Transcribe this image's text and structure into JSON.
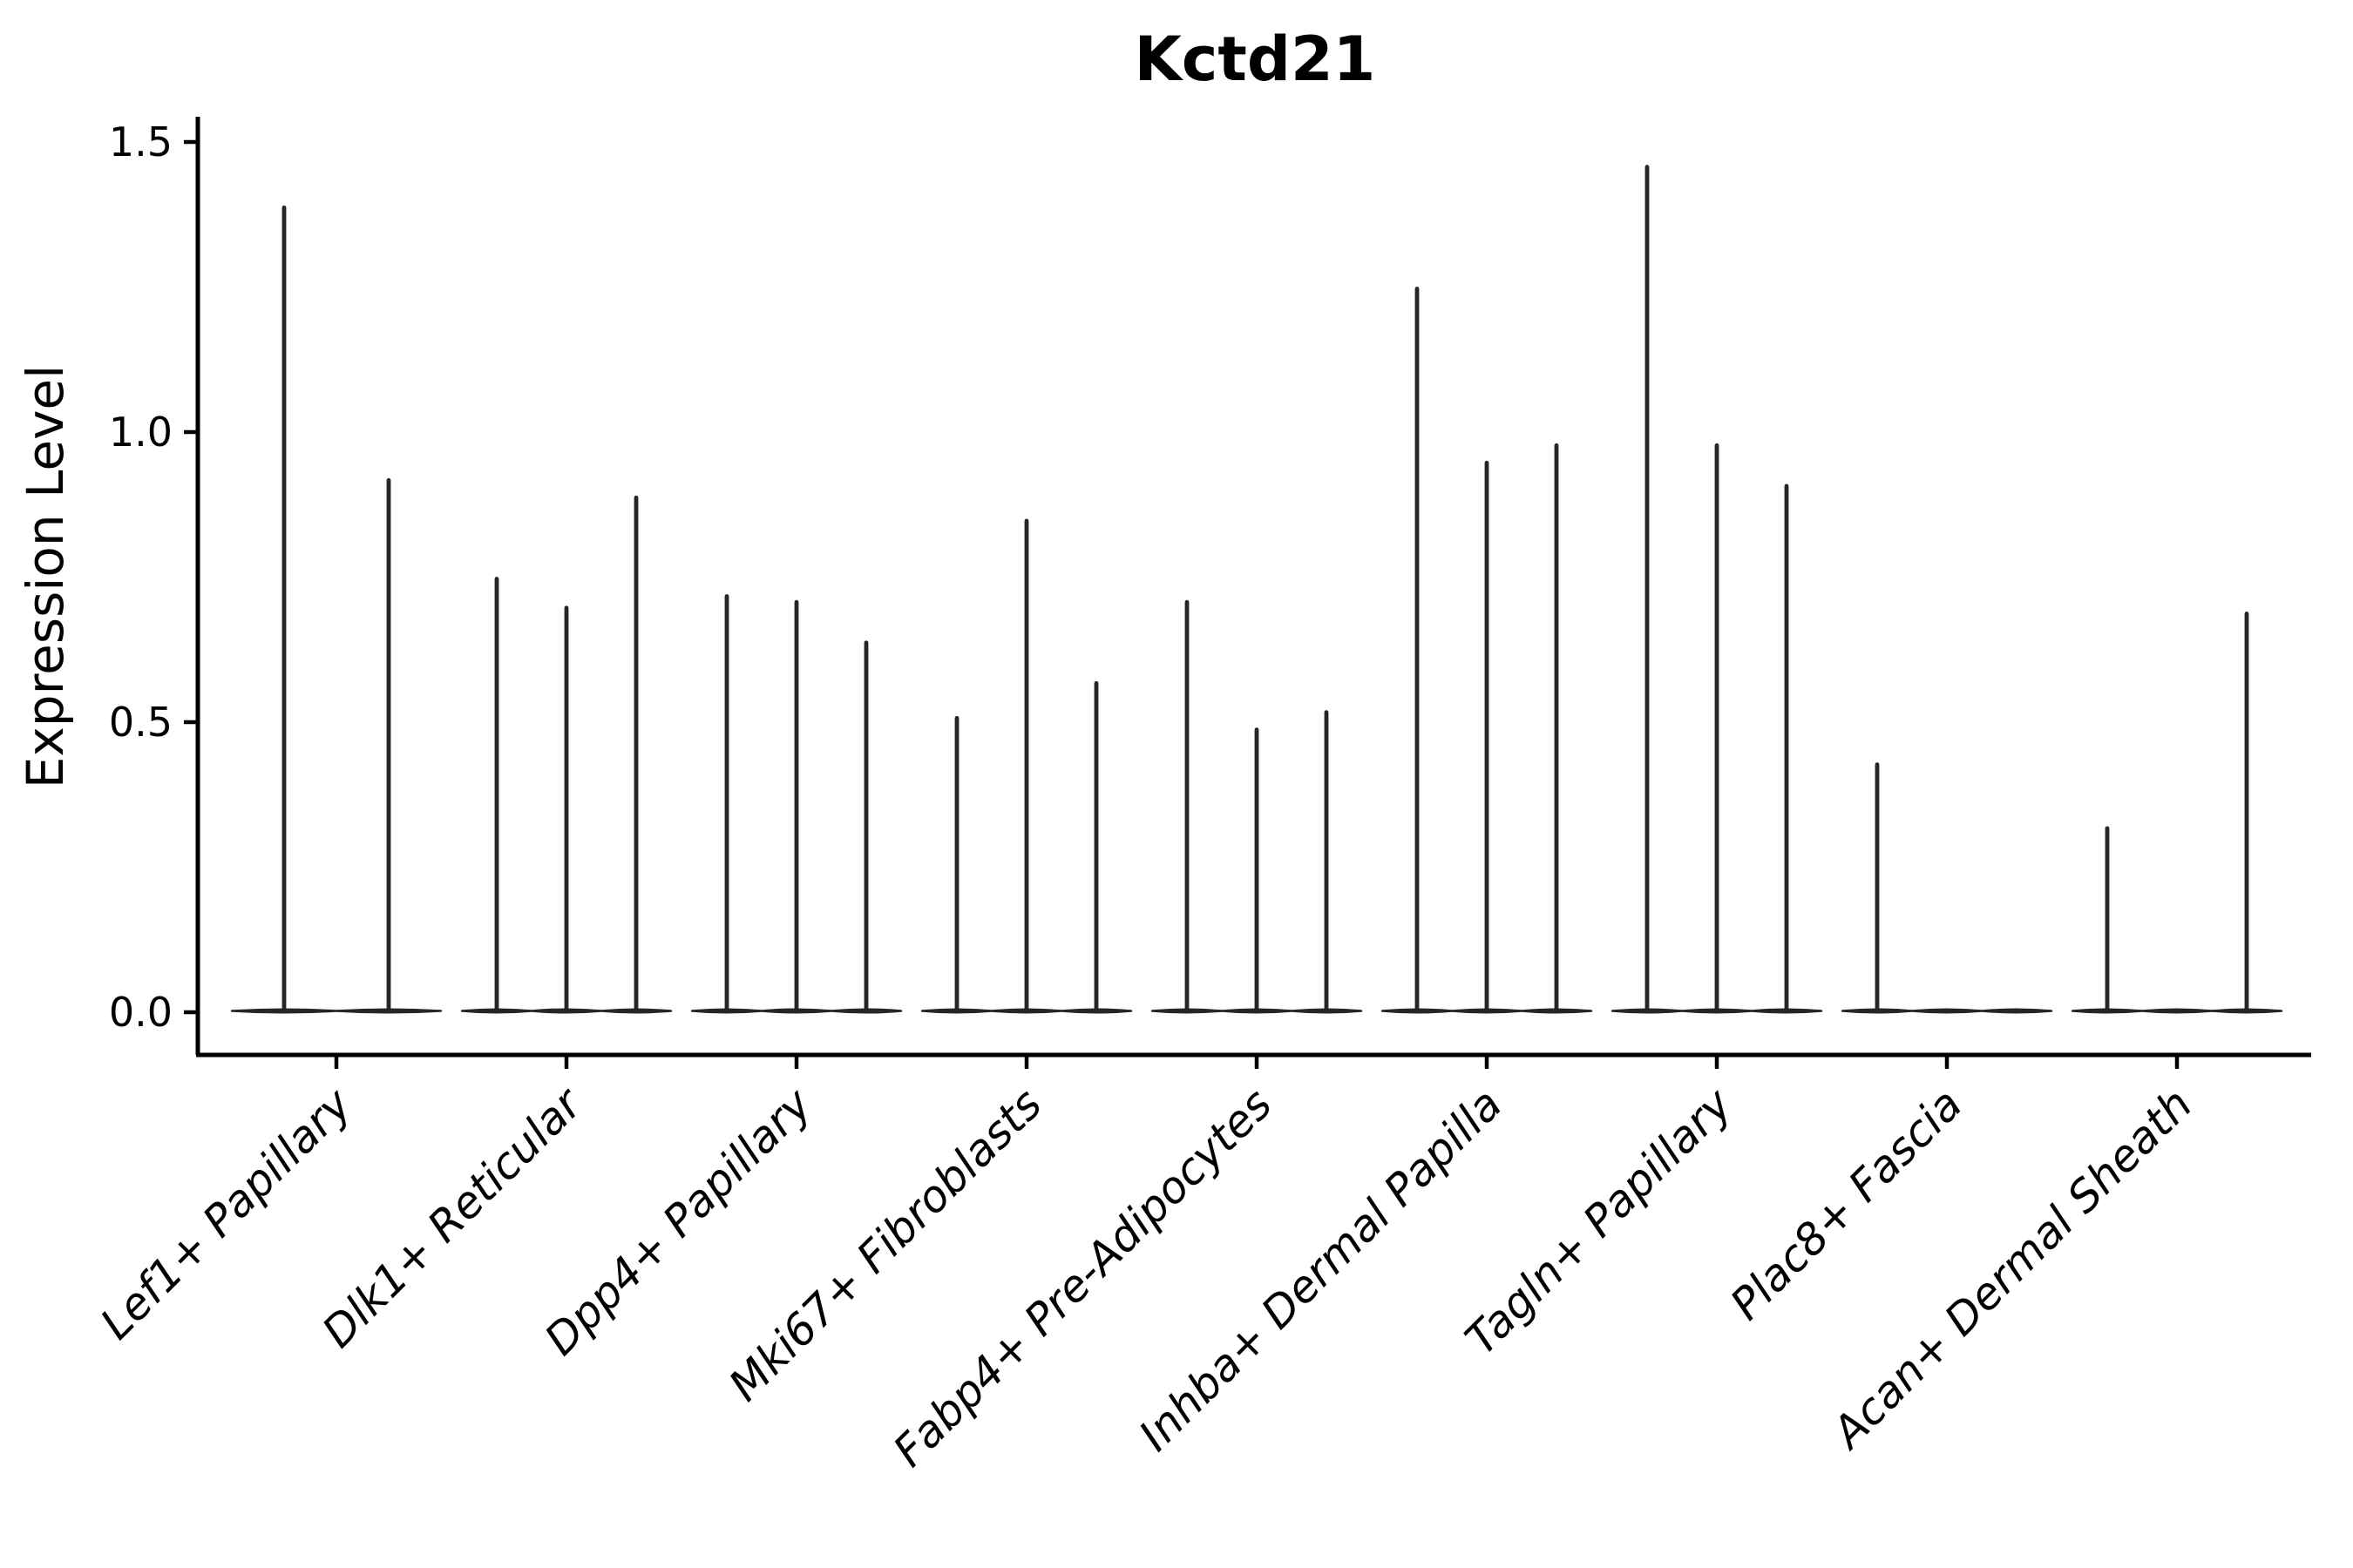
{
  "figure": {
    "title": "Kctd21"
  },
  "axes": {
    "ylabel": "Expression Level",
    "ytick_labels": [
      "0.0",
      "0.5",
      "1.0",
      "1.5"
    ]
  },
  "chart_data": {
    "type": "violin",
    "title": "Kctd21",
    "xlabel": "",
    "ylabel": "Expression Level",
    "ylim": [
      0,
      1.5
    ],
    "yticks": [
      0.0,
      0.5,
      1.0,
      1.5
    ],
    "grid": false,
    "legend": "none",
    "style_note": "needle-thin black violins on a flat baseline at 0; each category holds 2-3 adjacent sub-violins; peak = top of expression spike, 0 = completely flat violin",
    "categories": [
      "Lef1+ Papillary",
      "Dlk1+ Reticular",
      "Dpp4+ Papillary",
      "Mki67+ Fibroblasts",
      "Fabp4+ Pre-Adipocytes",
      "Inhba+ Dermal Papilla",
      "Tagln+ Papillary",
      "Plac8+ Fascia",
      "Acan+ Dermal Sheath"
    ],
    "violins": [
      {
        "category": "Lef1+ Papillary",
        "peaks": [
          1.39,
          0.92
        ]
      },
      {
        "category": "Dlk1+ Reticular",
        "peaks": [
          0.75,
          0.7,
          0.89
        ]
      },
      {
        "category": "Dpp4+ Papillary",
        "peaks": [
          0.72,
          0.71,
          0.64
        ]
      },
      {
        "category": "Mki67+ Fibroblasts",
        "peaks": [
          0.51,
          0.85,
          0.57
        ]
      },
      {
        "category": "Fabp4+ Pre-Adipocytes",
        "peaks": [
          0.71,
          0.49,
          0.52
        ]
      },
      {
        "category": "Inhba+ Dermal Papilla",
        "peaks": [
          1.25,
          0.95,
          0.98
        ]
      },
      {
        "category": "Tagln+ Papillary",
        "peaks": [
          1.46,
          0.98,
          0.91
        ]
      },
      {
        "category": "Plac8+ Fascia",
        "peaks": [
          0.43,
          0.0,
          0.0
        ]
      },
      {
        "category": "Acan+ Dermal Sheath",
        "peaks": [
          0.32,
          0.0,
          0.69
        ]
      }
    ],
    "colors": {
      "violin_stroke": "#262626",
      "axis": "#000000",
      "background": "#ffffff"
    }
  }
}
